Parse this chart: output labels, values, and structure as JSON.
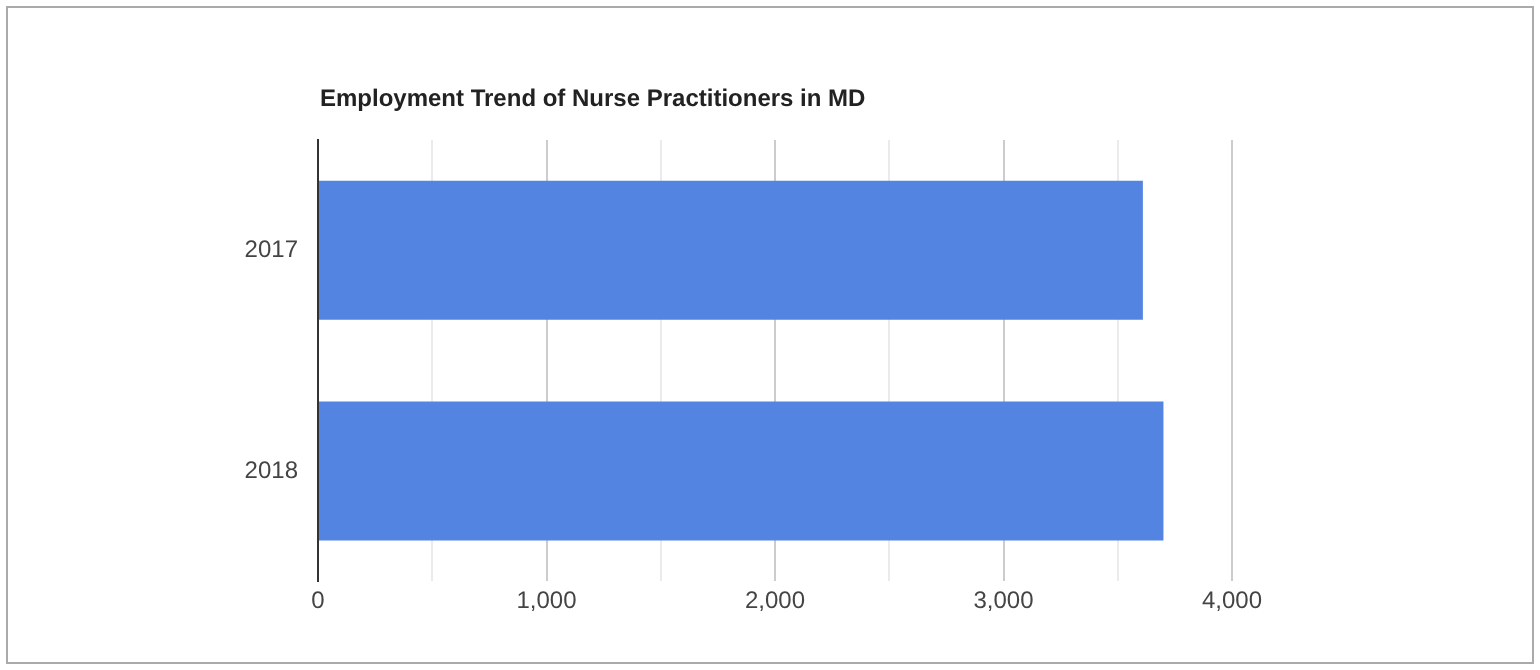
{
  "chart_data": {
    "type": "bar",
    "orientation": "horizontal",
    "title": "Employment Trend of Nurse Practitioners in MD",
    "categories": [
      "2017",
      "2018"
    ],
    "values": [
      3610,
      3700
    ],
    "color": "#5484e2",
    "xlim": [
      0,
      4000
    ],
    "xticks": [
      0,
      {
        "value": 500,
        "label": null
      },
      {
        "value": 1000,
        "label": "1,000"
      },
      {
        "value": 1500,
        "label": null
      },
      {
        "value": 2000,
        "label": "2,000"
      },
      {
        "value": 2500,
        "label": null
      },
      {
        "value": 3000,
        "label": "3,000"
      },
      {
        "value": 3500,
        "label": null
      },
      {
        "value": 4000,
        "label": "4,000"
      }
    ],
    "grid": "x",
    "legend": false
  }
}
